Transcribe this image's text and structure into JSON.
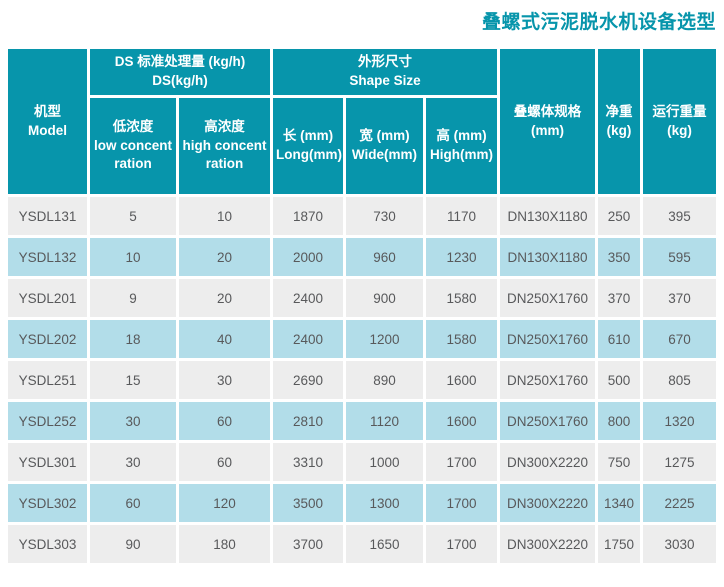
{
  "title": "叠螺式污泥脱水机设备选型",
  "colors": {
    "brand_teal": "#0795AB",
    "header_text": "#FFFFFF",
    "row_gray": "#EDEDED",
    "row_blue": "#B2DDE9",
    "data_text": "#58595B",
    "page_bg": "#FFFFFF"
  },
  "table": {
    "column_keys": [
      "model",
      "low-concentration",
      "high-concentration",
      "length-mm",
      "width-mm",
      "height-mm",
      "screw-body-spec-mm",
      "net-weight-kg",
      "running-weight-kg"
    ],
    "header": {
      "model": {
        "line1": "机型",
        "line2": "Model"
      },
      "ds_group": {
        "line1": "DS 标准处理量 (kg/h)",
        "line2": "DS(kg/h)"
      },
      "shape_group": {
        "line1": "外形尺寸",
        "line2": "Shape Size"
      },
      "low_concentration": {
        "line1": "低浓度",
        "line2": "low concentration"
      },
      "high_concentration": {
        "line1": "高浓度",
        "line2": "high concentration"
      },
      "length": {
        "line1": "长 (mm)",
        "line2": "Long(mm)"
      },
      "width": {
        "line1": "宽 (mm)",
        "line2": "Wide(mm)"
      },
      "height": {
        "line1": "高 (mm)",
        "line2": "High(mm)"
      },
      "screw_body_spec": {
        "line1": "叠螺体规格",
        "line2": "(mm)"
      },
      "net_weight": {
        "line1": "净重",
        "line2": "(kg)"
      },
      "running_weight": {
        "line1": "运行重量",
        "line2": "(kg)"
      }
    },
    "rows": [
      [
        "YSDL131",
        "5",
        "10",
        "1870",
        "730",
        "1170",
        "DN130X1180",
        "250",
        "395"
      ],
      [
        "YSDL132",
        "10",
        "20",
        "2000",
        "960",
        "1230",
        "DN130X1180",
        "350",
        "595"
      ],
      [
        "YSDL201",
        "9",
        "20",
        "2400",
        "900",
        "1580",
        "DN250X1760",
        "370",
        "370"
      ],
      [
        "YSDL202",
        "18",
        "40",
        "2400",
        "1200",
        "1580",
        "DN250X1760",
        "610",
        "670"
      ],
      [
        "YSDL251",
        "15",
        "30",
        "2690",
        "890",
        "1600",
        "DN250X1760",
        "500",
        "805"
      ],
      [
        "YSDL252",
        "30",
        "60",
        "2810",
        "1120",
        "1600",
        "DN250X1760",
        "800",
        "1320"
      ],
      [
        "YSDL301",
        "30",
        "60",
        "3310",
        "1000",
        "1700",
        "DN300X2220",
        "750",
        "1275"
      ],
      [
        "YSDL302",
        "60",
        "120",
        "3500",
        "1300",
        "1700",
        "DN300X2220",
        "1340",
        "2225"
      ],
      [
        "YSDL303",
        "90",
        "180",
        "3700",
        "1650",
        "1700",
        "DN300X2220",
        "1750",
        "3030"
      ]
    ]
  }
}
